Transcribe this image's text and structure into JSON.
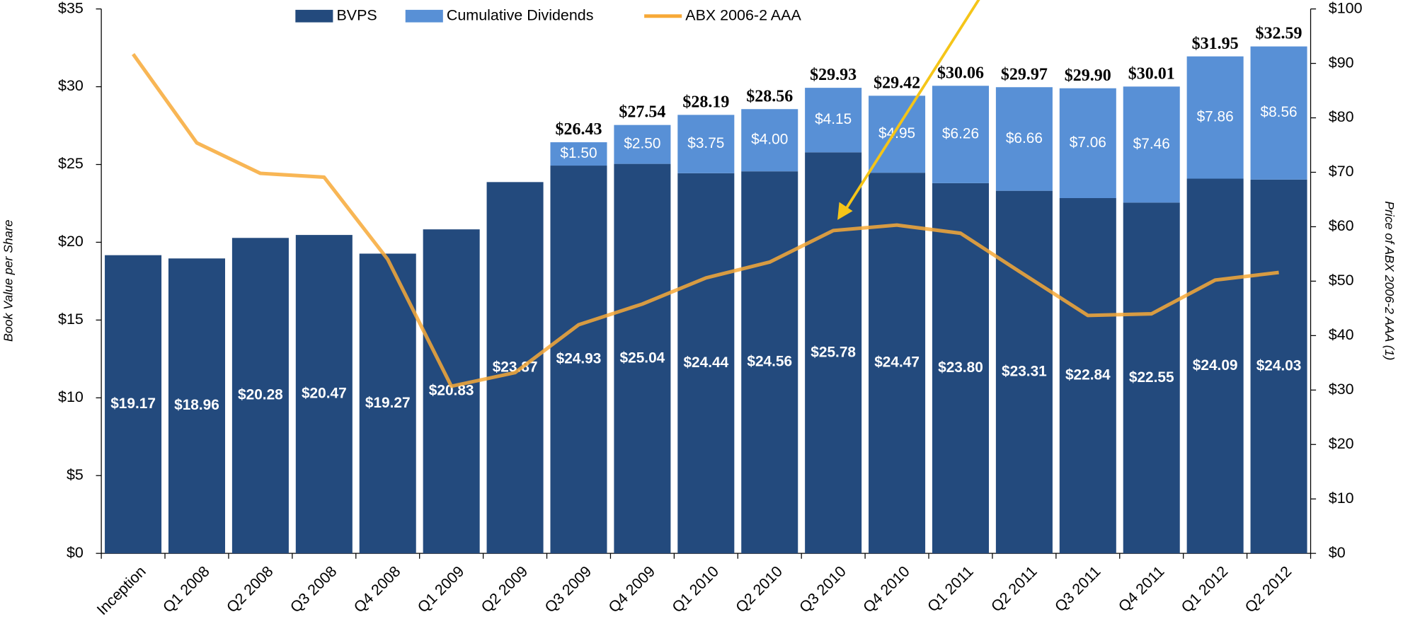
{
  "chart_data": {
    "type": "bar",
    "stacked": true,
    "categories": [
      "Inception",
      "Q1 2008",
      "Q2 2008",
      "Q3 2008",
      "Q4 2008",
      "Q1 2009",
      "Q2 2009",
      "Q3 2009",
      "Q4 2009",
      "Q1 2010",
      "Q2 2010",
      "Q3 2010",
      "Q4 2010",
      "Q1 2011",
      "Q2 2011",
      "Q3 2011",
      "Q4 2011",
      "Q1 2012",
      "Q2 2012"
    ],
    "series": [
      {
        "name": "BVPS",
        "color": "#234a7d",
        "values": [
          19.17,
          18.96,
          20.28,
          20.47,
          19.27,
          20.83,
          23.87,
          24.93,
          25.04,
          24.44,
          24.56,
          25.78,
          24.47,
          23.8,
          23.31,
          22.84,
          22.55,
          24.09,
          24.03
        ],
        "value_labels": [
          "$19.17",
          "$18.96",
          "$20.28",
          "$20.47",
          "$19.27",
          "$20.83",
          "$23.87",
          "$24.93",
          "$25.04",
          "$24.44",
          "$24.56",
          "$25.78",
          "$24.47",
          "$23.80",
          "$23.31",
          "$22.84",
          "$22.55",
          "$24.09",
          "$24.03"
        ]
      },
      {
        "name": "Cumulative Dividends",
        "color": "#5890d6",
        "values": [
          null,
          null,
          null,
          null,
          null,
          null,
          null,
          1.5,
          2.5,
          3.75,
          4.0,
          4.15,
          4.95,
          6.26,
          6.66,
          7.06,
          7.46,
          7.86,
          8.56
        ],
        "value_labels": [
          null,
          null,
          null,
          null,
          null,
          null,
          null,
          "$1.50",
          "$2.50",
          "$3.75",
          "$4.00",
          "$4.15",
          "$4.95",
          "$6.26",
          "$6.66",
          "$7.06",
          "$7.46",
          "$7.86",
          "$8.56"
        ]
      },
      {
        "name": "ABX 2006-2 AAA",
        "type": "line",
        "axis": "y2",
        "color": "#f7a937",
        "values": [
          91.7,
          75.4,
          69.8,
          69.1,
          54.0,
          30.7,
          33.2,
          42.0,
          45.8,
          50.6,
          53.5,
          59.3,
          60.3,
          58.8,
          51.2,
          43.7,
          44.0,
          50.2,
          51.6
        ]
      }
    ],
    "totals": {
      "values": [
        null,
        null,
        null,
        null,
        null,
        null,
        null,
        26.43,
        27.54,
        28.19,
        28.56,
        29.93,
        29.42,
        30.06,
        29.97,
        29.9,
        30.01,
        31.95,
        32.59
      ],
      "value_labels": [
        null,
        null,
        null,
        null,
        null,
        null,
        null,
        "$26.43",
        "$27.54",
        "$28.19",
        "$28.56",
        "$29.93",
        "$29.42",
        "$30.06",
        "$29.97",
        "$29.90",
        "$30.01",
        "$31.95",
        "$32.59"
      ]
    },
    "ylabel": "Book Value per Share",
    "y2label": "Price of ABX 2006-2 AAA (1)",
    "ylim": [
      0,
      35
    ],
    "yticks": [
      {
        "value": 0,
        "label": "$0"
      },
      {
        "value": 5,
        "label": "$5"
      },
      {
        "value": 10,
        "label": "$10"
      },
      {
        "value": 15,
        "label": "$15"
      },
      {
        "value": 20,
        "label": "$20"
      },
      {
        "value": 25,
        "label": "$25"
      },
      {
        "value": 30,
        "label": "$30"
      },
      {
        "value": 35,
        "label": "$35"
      }
    ],
    "y2lim": [
      0,
      100
    ],
    "y2ticks": [
      {
        "value": 0,
        "label": "$0"
      },
      {
        "value": 10,
        "label": "$10"
      },
      {
        "value": 20,
        "label": "$20"
      },
      {
        "value": 30,
        "label": "$30"
      },
      {
        "value": 40,
        "label": "$40"
      },
      {
        "value": 50,
        "label": "$50"
      },
      {
        "value": 60,
        "label": "$60"
      },
      {
        "value": 70,
        "label": "$70"
      },
      {
        "value": 80,
        "label": "$80"
      },
      {
        "value": 90,
        "label": "$90"
      },
      {
        "value": 100,
        "label": "$100"
      }
    ],
    "grid": false,
    "legend": "top"
  }
}
